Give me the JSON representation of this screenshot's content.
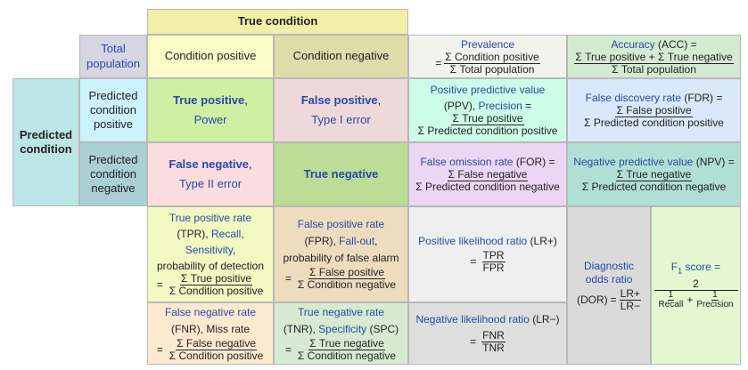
{
  "header": {
    "true_condition": "True condition"
  },
  "total_population": "Total population",
  "condition_positive": "Condition positive",
  "condition_negative": "Condition negative",
  "predicted_condition": "Predicted condition",
  "predicted_condition_positive": "Predicted condition positive",
  "predicted_condition_negative": "Predicted condition negative",
  "prevalence": {
    "label": "Prevalence",
    "num": "Σ Condition positive",
    "den": "Σ Total population"
  },
  "accuracy": {
    "label": "Accuracy",
    "abbr": " (ACC) =",
    "num": "Σ True positive + Σ True negative",
    "den": "Σ Total population"
  },
  "true_positive": {
    "label": "True positive",
    "sep": ",",
    "alt": "Power"
  },
  "false_positive": {
    "label": "False positive",
    "sep": ",",
    "alt": "Type I error"
  },
  "false_negative": {
    "label": "False negative",
    "sep": ",",
    "alt": "Type II error"
  },
  "true_negative": {
    "label": "True negative"
  },
  "ppv": {
    "label": "Positive predictive value",
    "line2a": "(PPV), ",
    "line2b": "Precision",
    "line2c": " =",
    "num": "Σ True positive",
    "den": "Σ Predicted condition positive"
  },
  "fdr": {
    "label": "False discovery rate",
    "abbr": " (FDR) =",
    "num": "Σ False positive",
    "den": "Σ Predicted condition positive"
  },
  "for": {
    "label": "False omission rate",
    "abbr": " (FOR) =",
    "num": "Σ False negative",
    "den": "Σ Predicted condition negative"
  },
  "npv": {
    "label": "Negative predictive value",
    "abbr": " (NPV) =",
    "num": "Σ True negative",
    "den": "Σ Predicted condition negative"
  },
  "tpr": {
    "label": "True positive rate",
    "l2a": "(TPR), ",
    "l2b": "Recall",
    "l2c": ",",
    "l3": "Sensitivity",
    "l3c": ",",
    "l4": "probability of detection",
    "eq": "=",
    "num": "Σ True positive",
    "den": "Σ Condition positive"
  },
  "fpr": {
    "label": "False positive rate",
    "l2a": "(FPR), ",
    "l2b": "Fall-out",
    "l2c": ",",
    "l3": "probability of false alarm",
    "eq": "=",
    "num": "Σ False positive",
    "den": "Σ Condition negative"
  },
  "lrp": {
    "label": "Positive likelihood ratio",
    "abbr": " (LR+)",
    "eq": "=",
    "num": "TPR",
    "den": "FPR"
  },
  "dor": {
    "label": "Diagnostic odds ratio",
    "abbr": "(DOR)",
    "eq": "=",
    "num": "LR+",
    "den": "LR−"
  },
  "f1": {
    "label": "F",
    "sub": "1",
    "rest": " score =",
    "num": "2",
    "den_a_num": "1",
    "den_a_den": "Recall",
    "plus": "+",
    "den_b_num": "1",
    "den_b_den": "Precision"
  },
  "fnr": {
    "label": "False negative rate",
    "l2": "(FNR), Miss rate",
    "eq": "=",
    "num": "Σ False negative",
    "den": "Σ Condition positive"
  },
  "tnr": {
    "label": "True negative rate",
    "l2a": "(TNR), ",
    "l2b": "Specificity",
    "l2c": " (SPC)",
    "eq": "=",
    "num": "Σ True negative",
    "den": "Σ Condition negative"
  },
  "lrn": {
    "label": "Negative likelihood ratio",
    "abbr": " (LR−)",
    "eq": "=",
    "num": "FNR",
    "den": "TNR"
  }
}
